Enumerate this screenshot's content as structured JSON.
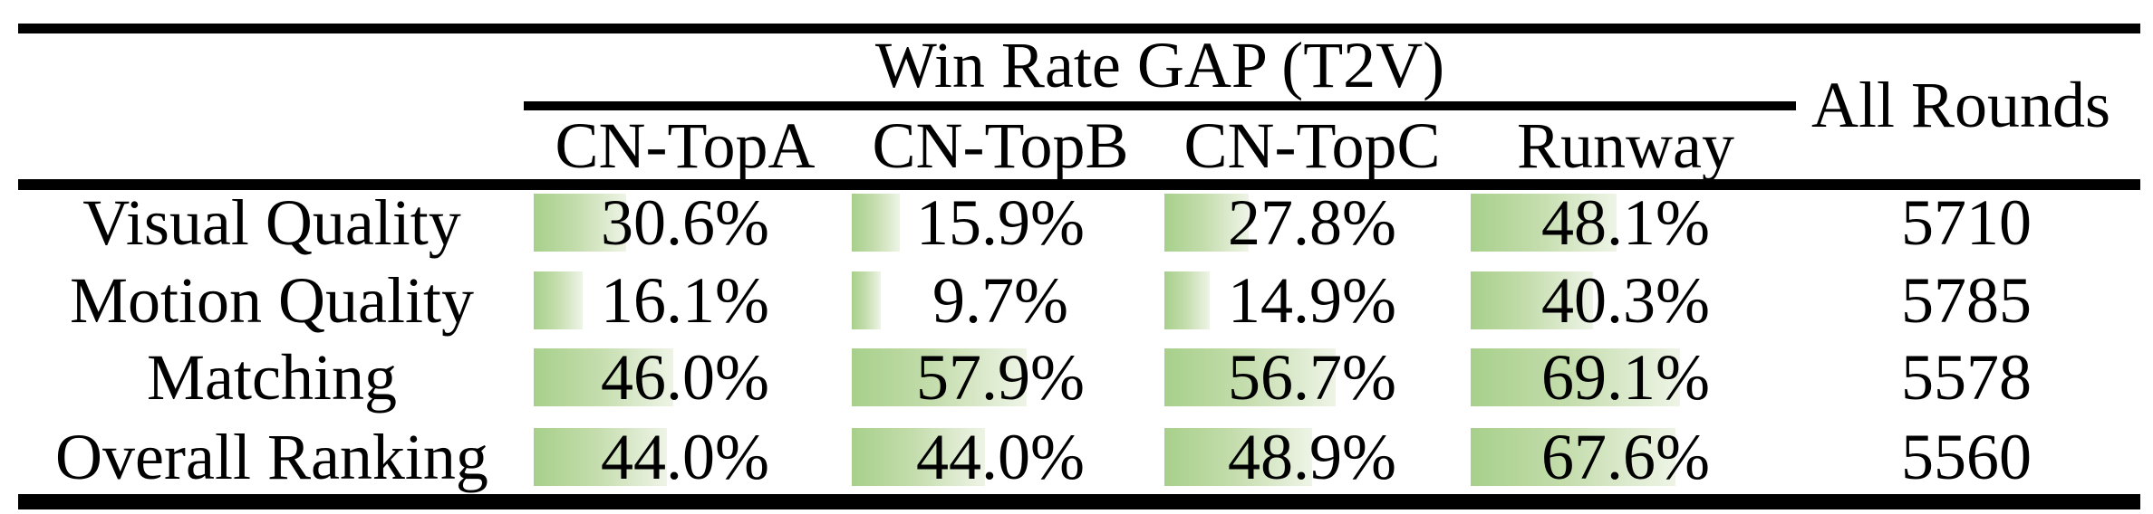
{
  "table": {
    "group_header": "Win Rate GAP (T2V)",
    "all_rounds_header": "All Rounds",
    "columns": [
      "CN-TopA",
      "CN-TopB",
      "CN-TopC",
      "Runway"
    ],
    "rows": [
      {
        "label": "Visual Quality",
        "cells": [
          {
            "pct": 30.6,
            "text": "30.6%"
          },
          {
            "pct": 15.9,
            "text": "15.9%"
          },
          {
            "pct": 27.8,
            "text": "27.8%"
          },
          {
            "pct": 48.1,
            "text": "48.1%"
          }
        ],
        "all_rounds": "5710"
      },
      {
        "label": "Motion Quality",
        "cells": [
          {
            "pct": 16.1,
            "text": "16.1%"
          },
          {
            "pct": 9.7,
            "text": "9.7%"
          },
          {
            "pct": 14.9,
            "text": "14.9%"
          },
          {
            "pct": 40.3,
            "text": "40.3%"
          }
        ],
        "all_rounds": "5785"
      },
      {
        "label": "Matching",
        "cells": [
          {
            "pct": 46.0,
            "text": "46.0%"
          },
          {
            "pct": 57.9,
            "text": "57.9%"
          },
          {
            "pct": 56.7,
            "text": "56.7%"
          },
          {
            "pct": 69.1,
            "text": "69.1%"
          }
        ],
        "all_rounds": "5578"
      },
      {
        "label": "Overall Ranking",
        "cells": [
          {
            "pct": 44.0,
            "text": "44.0%"
          },
          {
            "pct": 44.0,
            "text": "44.0%"
          },
          {
            "pct": 48.9,
            "text": "48.9%"
          },
          {
            "pct": 67.6,
            "text": "67.6%"
          }
        ],
        "all_rounds": "5560"
      }
    ]
  },
  "colors": {
    "bar_gradient_start": "#a7d08b",
    "bar_gradient_end": "#eef4e6",
    "rule_color": "#000000",
    "text_color": "#000000"
  }
}
